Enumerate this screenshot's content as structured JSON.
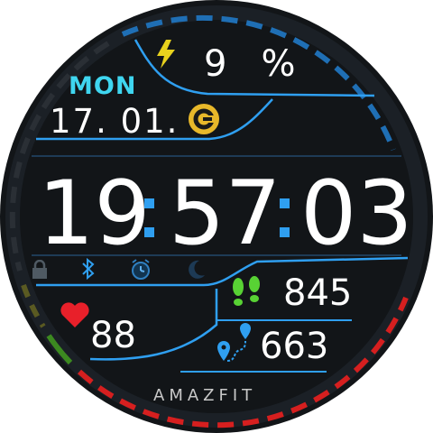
{
  "colors": {
    "background": "#121518",
    "accent_blue": "#2f9ff0",
    "day_cyan": "#3fd6f0",
    "battery_yellow": "#e8d21d",
    "heart_red": "#e8202a",
    "steps_green": "#58d234",
    "dial_red": "#d61f1f",
    "dial_blue": "#1f6fb5",
    "icon_grey": "#4f5a63"
  },
  "battery": {
    "value": "9",
    "unit": "%",
    "icon": "lightning-bolt-icon"
  },
  "date": {
    "day_of_week": "MON",
    "day_month": "17. 01."
  },
  "time": {
    "hours": "19",
    "minutes": "57",
    "seconds": "03"
  },
  "status_icons": [
    "lock-icon",
    "bluetooth-icon",
    "alarm-icon",
    "do-not-disturb-moon-icon"
  ],
  "heart_rate": {
    "value": "88",
    "icon": "heart-icon"
  },
  "steps": {
    "value": "845",
    "icon": "footprints-icon"
  },
  "distance": {
    "value": "663",
    "icon": "route-pin-icon"
  },
  "brand": "AMAZFIT",
  "logo_icon": "g-logo-icon"
}
